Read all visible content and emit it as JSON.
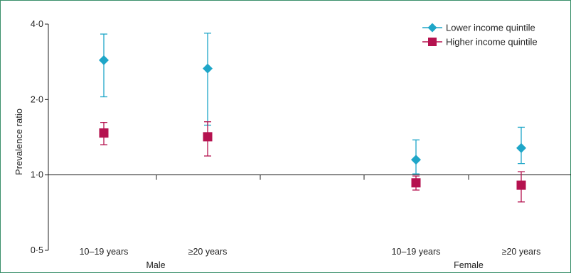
{
  "chart_data": {
    "type": "scatter",
    "y_scale": "log",
    "ylabel": "Prevalence ratio",
    "xlabel": "",
    "ylim": [
      0.5,
      4.0
    ],
    "yticks": [
      0.5,
      1.0,
      2.0,
      4.0
    ],
    "ytick_labels": [
      "0·5",
      "1·0",
      "2·0",
      "4·0"
    ],
    "reference_line": 1.0,
    "groups": [
      {
        "label": "Male",
        "categories": [
          "10–19 years",
          "≥20 years"
        ]
      },
      {
        "label": "Female",
        "categories": [
          "10–19 years",
          "≥20 years"
        ]
      }
    ],
    "series": [
      {
        "name": "Lower income quintile",
        "marker": "diamond",
        "color": "#1ea6c8",
        "points": [
          {
            "group": "Male",
            "category": "10–19 years",
            "value": 2.87,
            "ci": [
              2.05,
              3.65
            ]
          },
          {
            "group": "Male",
            "category": "≥20 years",
            "value": 2.66,
            "ci": [
              1.58,
              3.68
            ]
          },
          {
            "group": "Female",
            "category": "10–19 years",
            "value": 1.15,
            "ci": [
              1.01,
              1.38
            ]
          },
          {
            "group": "Female",
            "category": "≥20 years",
            "value": 1.28,
            "ci": [
              1.11,
              1.55
            ]
          }
        ]
      },
      {
        "name": "Higher income quintile",
        "marker": "square",
        "color": "#b5124f",
        "points": [
          {
            "group": "Male",
            "category": "10–19 years",
            "value": 1.47,
            "ci": [
              1.32,
              1.62
            ]
          },
          {
            "group": "Male",
            "category": "≥20 years",
            "value": 1.42,
            "ci": [
              1.19,
              1.63
            ]
          },
          {
            "group": "Female",
            "category": "10–19 years",
            "value": 0.93,
            "ci": [
              0.87,
              0.99
            ]
          },
          {
            "group": "Female",
            "category": "≥20 years",
            "value": 0.91,
            "ci": [
              0.78,
              1.03
            ]
          }
        ]
      }
    ],
    "legend_position": "top-right",
    "grid": false
  }
}
